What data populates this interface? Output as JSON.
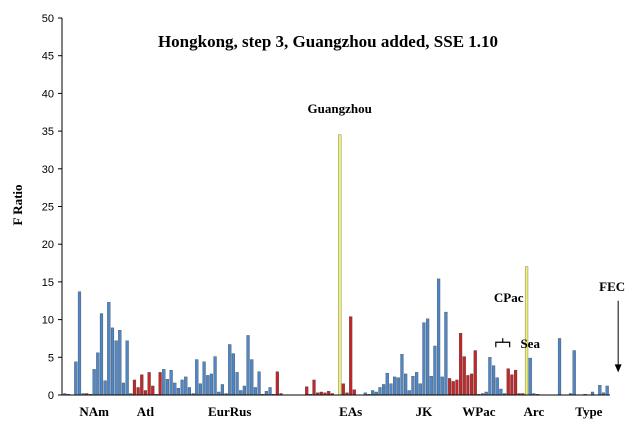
{
  "chart_data": {
    "type": "bar",
    "title": "Hongkong, step 3, Guangzhou added, SSE 1.10",
    "ylabel": "F Ratio",
    "xlabel": "",
    "ylim": [
      0,
      50
    ],
    "yticks": [
      0,
      5,
      10,
      15,
      20,
      25,
      30,
      35,
      40,
      45,
      50
    ],
    "grid": false,
    "colors": {
      "blue": "#4f86c6",
      "red": "#c0282c",
      "yellow": "#f2f27a",
      "edge": "#333333"
    },
    "bars": [
      {
        "v": 0.2,
        "c": "blue"
      },
      {
        "v": 0.1,
        "c": "blue"
      },
      {
        "v": 0.0,
        "c": "blue"
      },
      {
        "v": 4.4,
        "c": "blue"
      },
      {
        "v": 13.7,
        "c": "blue"
      },
      {
        "v": 0.2,
        "c": "blue"
      },
      {
        "v": 0.2,
        "c": "red"
      },
      {
        "v": 0.1,
        "c": "blue"
      },
      {
        "v": 3.4,
        "c": "blue"
      },
      {
        "v": 5.6,
        "c": "blue"
      },
      {
        "v": 10.8,
        "c": "blue"
      },
      {
        "v": 1.9,
        "c": "blue"
      },
      {
        "v": 12.3,
        "c": "blue"
      },
      {
        "v": 8.9,
        "c": "blue"
      },
      {
        "v": 7.2,
        "c": "blue"
      },
      {
        "v": 8.6,
        "c": "blue"
      },
      {
        "v": 1.6,
        "c": "blue"
      },
      {
        "v": 7.2,
        "c": "blue"
      },
      {
        "v": 0.2,
        "c": "blue"
      },
      {
        "v": 2.0,
        "c": "red"
      },
      {
        "v": 1.0,
        "c": "red"
      },
      {
        "v": 2.7,
        "c": "red"
      },
      {
        "v": 0.6,
        "c": "red"
      },
      {
        "v": 3.0,
        "c": "red"
      },
      {
        "v": 1.2,
        "c": "red"
      },
      {
        "v": 0.1,
        "c": "red"
      },
      {
        "v": 3.0,
        "c": "red"
      },
      {
        "v": 3.4,
        "c": "blue"
      },
      {
        "v": 2.1,
        "c": "blue"
      },
      {
        "v": 3.3,
        "c": "blue"
      },
      {
        "v": 1.6,
        "c": "blue"
      },
      {
        "v": 0.9,
        "c": "blue"
      },
      {
        "v": 2.0,
        "c": "blue"
      },
      {
        "v": 2.4,
        "c": "blue"
      },
      {
        "v": 1.0,
        "c": "blue"
      },
      {
        "v": 0.2,
        "c": "blue"
      },
      {
        "v": 4.7,
        "c": "blue"
      },
      {
        "v": 1.5,
        "c": "blue"
      },
      {
        "v": 4.4,
        "c": "blue"
      },
      {
        "v": 2.6,
        "c": "blue"
      },
      {
        "v": 2.8,
        "c": "blue"
      },
      {
        "v": 5.1,
        "c": "blue"
      },
      {
        "v": 0.4,
        "c": "blue"
      },
      {
        "v": 1.4,
        "c": "blue"
      },
      {
        "v": 0.2,
        "c": "blue"
      },
      {
        "v": 6.7,
        "c": "blue"
      },
      {
        "v": 5.5,
        "c": "blue"
      },
      {
        "v": 3.0,
        "c": "blue"
      },
      {
        "v": 0.6,
        "c": "blue"
      },
      {
        "v": 1.2,
        "c": "blue"
      },
      {
        "v": 7.9,
        "c": "blue"
      },
      {
        "v": 4.7,
        "c": "blue"
      },
      {
        "v": 1.0,
        "c": "blue"
      },
      {
        "v": 3.1,
        "c": "blue"
      },
      {
        "v": 0.1,
        "c": "blue"
      },
      {
        "v": 0.5,
        "c": "blue"
      },
      {
        "v": 1.0,
        "c": "blue"
      },
      {
        "v": 0.1,
        "c": "blue"
      },
      {
        "v": 3.1,
        "c": "red"
      },
      {
        "v": 0.2,
        "c": "red"
      },
      {
        "v": 0.0,
        "c": "blue"
      },
      {
        "v": 0.0,
        "c": "blue"
      },
      {
        "v": 0.0,
        "c": "blue"
      },
      {
        "v": 0.0,
        "c": "blue"
      },
      {
        "v": 0.0,
        "c": "blue"
      },
      {
        "v": 0.0,
        "c": "blue"
      },
      {
        "v": 1.1,
        "c": "red"
      },
      {
        "v": 0.1,
        "c": "red"
      },
      {
        "v": 2.0,
        "c": "red"
      },
      {
        "v": 0.3,
        "c": "red"
      },
      {
        "v": 0.4,
        "c": "red"
      },
      {
        "v": 0.3,
        "c": "red"
      },
      {
        "v": 0.5,
        "c": "red"
      },
      {
        "v": 0.2,
        "c": "red"
      },
      {
        "v": 0.0,
        "c": "red"
      },
      {
        "v": 34.5,
        "c": "yellow"
      },
      {
        "v": 1.5,
        "c": "red"
      },
      {
        "v": 0.3,
        "c": "red"
      },
      {
        "v": 10.4,
        "c": "red"
      },
      {
        "v": 0.7,
        "c": "red"
      },
      {
        "v": 0.0,
        "c": "blue"
      },
      {
        "v": 0.0,
        "c": "blue"
      },
      {
        "v": 0.3,
        "c": "blue"
      },
      {
        "v": 0.1,
        "c": "blue"
      },
      {
        "v": 0.6,
        "c": "blue"
      },
      {
        "v": 0.4,
        "c": "blue"
      },
      {
        "v": 1.0,
        "c": "blue"
      },
      {
        "v": 1.4,
        "c": "blue"
      },
      {
        "v": 2.9,
        "c": "blue"
      },
      {
        "v": 1.5,
        "c": "blue"
      },
      {
        "v": 2.4,
        "c": "blue"
      },
      {
        "v": 2.3,
        "c": "blue"
      },
      {
        "v": 5.4,
        "c": "blue"
      },
      {
        "v": 2.8,
        "c": "blue"
      },
      {
        "v": 0.6,
        "c": "blue"
      },
      {
        "v": 2.5,
        "c": "blue"
      },
      {
        "v": 3.0,
        "c": "blue"
      },
      {
        "v": 1.5,
        "c": "blue"
      },
      {
        "v": 9.6,
        "c": "blue"
      },
      {
        "v": 10.1,
        "c": "blue"
      },
      {
        "v": 2.5,
        "c": "blue"
      },
      {
        "v": 6.5,
        "c": "blue"
      },
      {
        "v": 15.4,
        "c": "blue"
      },
      {
        "v": 2.4,
        "c": "blue"
      },
      {
        "v": 11.0,
        "c": "blue"
      },
      {
        "v": 2.2,
        "c": "red"
      },
      {
        "v": 1.8,
        "c": "red"
      },
      {
        "v": 2.0,
        "c": "red"
      },
      {
        "v": 8.2,
        "c": "red"
      },
      {
        "v": 5.1,
        "c": "red"
      },
      {
        "v": 2.6,
        "c": "red"
      },
      {
        "v": 2.8,
        "c": "red"
      },
      {
        "v": 5.9,
        "c": "red"
      },
      {
        "v": 0.1,
        "c": "red"
      },
      {
        "v": 0.2,
        "c": "blue"
      },
      {
        "v": 0.4,
        "c": "blue"
      },
      {
        "v": 5.0,
        "c": "blue"
      },
      {
        "v": 3.9,
        "c": "blue"
      },
      {
        "v": 2.3,
        "c": "blue"
      },
      {
        "v": 0.8,
        "c": "blue"
      },
      {
        "v": 0.2,
        "c": "blue"
      },
      {
        "v": 3.5,
        "c": "red"
      },
      {
        "v": 2.7,
        "c": "red"
      },
      {
        "v": 3.3,
        "c": "red"
      },
      {
        "v": 0.2,
        "c": "red"
      },
      {
        "v": 0.2,
        "c": "red"
      },
      {
        "v": 17.0,
        "c": "yellow"
      },
      {
        "v": 4.9,
        "c": "blue"
      },
      {
        "v": 0.2,
        "c": "blue"
      },
      {
        "v": 0.1,
        "c": "blue"
      },
      {
        "v": 0.0,
        "c": "blue"
      },
      {
        "v": 0.0,
        "c": "blue"
      },
      {
        "v": 0.0,
        "c": "blue"
      },
      {
        "v": 0.0,
        "c": "blue"
      },
      {
        "v": 0.0,
        "c": "blue"
      },
      {
        "v": 7.5,
        "c": "blue"
      },
      {
        "v": 0.0,
        "c": "blue"
      },
      {
        "v": 0.0,
        "c": "blue"
      },
      {
        "v": 0.2,
        "c": "blue"
      },
      {
        "v": 5.9,
        "c": "blue"
      },
      {
        "v": 0.0,
        "c": "blue"
      },
      {
        "v": 0.0,
        "c": "blue"
      },
      {
        "v": 0.1,
        "c": "blue"
      },
      {
        "v": 0.0,
        "c": "blue"
      },
      {
        "v": 0.4,
        "c": "blue"
      },
      {
        "v": 0.0,
        "c": "blue"
      },
      {
        "v": 1.3,
        "c": "blue"
      },
      {
        "v": 0.3,
        "c": "blue"
      },
      {
        "v": 1.2,
        "c": "blue"
      }
    ],
    "group_labels": [
      {
        "text": "NAm",
        "at": 8
      },
      {
        "text": "Atl",
        "at": 22
      },
      {
        "text": "EurRus",
        "at": 45
      },
      {
        "text": "EAs",
        "at": 78
      },
      {
        "text": "JK",
        "at": 98
      },
      {
        "text": "WPac",
        "at": 113
      },
      {
        "text": "Arc",
        "at": 128
      },
      {
        "text": "Type",
        "at": 143
      }
    ],
    "annotations": {
      "guangzhou": {
        "text": "Guangzhou",
        "bar": 75
      },
      "sea": {
        "text": "Sea",
        "bar": 127
      },
      "cpac": {
        "text": "CPac",
        "bracket_from": 118,
        "bracket_to": 121,
        "y": 7
      },
      "fec": {
        "text": "FEC",
        "arrow_bar": 151,
        "from_y": 12.5,
        "to_y": 3
      }
    }
  }
}
